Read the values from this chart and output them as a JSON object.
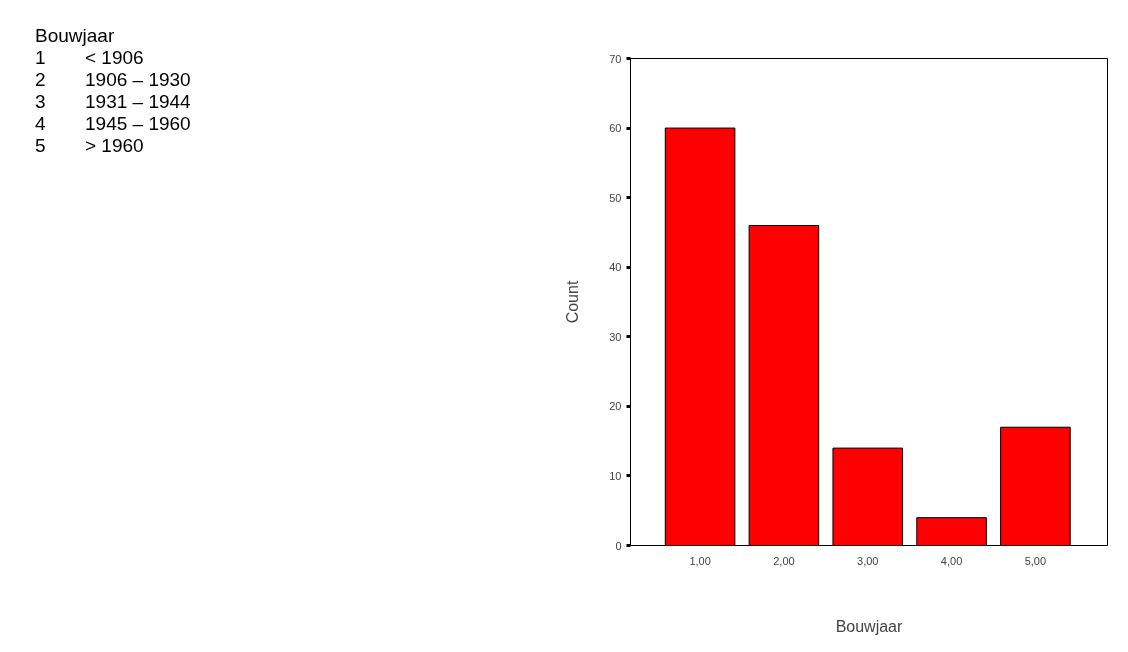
{
  "chart_data": {
    "type": "bar",
    "categories": [
      "1,00",
      "2,00",
      "3,00",
      "4,00",
      "5,00"
    ],
    "values": [
      60,
      46,
      14,
      4,
      17
    ],
    "color": "#ff0000",
    "ylim": [
      0,
      70
    ],
    "yticks": [
      0,
      10,
      20,
      30,
      40,
      50,
      60,
      70
    ],
    "xlabel": "Bouwjaar",
    "ylabel": "Count",
    "grid": false,
    "annotations": [
      "Bouwjaar",
      "1 < 1906",
      "2 1906 – 1930",
      "3 1931 – 1944",
      "4 1945 – 1960",
      "5 > 1960"
    ]
  }
}
